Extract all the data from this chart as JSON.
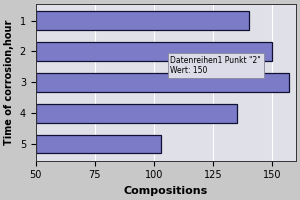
{
  "categories": [
    "1",
    "2",
    "3",
    "4",
    "5"
  ],
  "values": [
    140,
    150,
    157,
    135,
    103
  ],
  "bar_color_face": "#7B7BC8",
  "bar_color_edge": "#111133",
  "xlabel": "Compositions",
  "ylabel": "Time of corrosion,hour",
  "xlim": [
    50,
    160
  ],
  "xticks": [
    50,
    75,
    100,
    125,
    150
  ],
  "background_color": "#c8c8c8",
  "plot_bg": "#e0e0e8",
  "grid_color": "#ffffff",
  "tooltip_text": "Datenreihen1 Punkt \"2\"\nWert: 150",
  "xlabel_fontsize": 8,
  "ylabel_fontsize": 7,
  "tick_fontsize": 7,
  "bar_height": 0.6,
  "figsize": [
    3.0,
    2.0
  ],
  "dpi": 100
}
